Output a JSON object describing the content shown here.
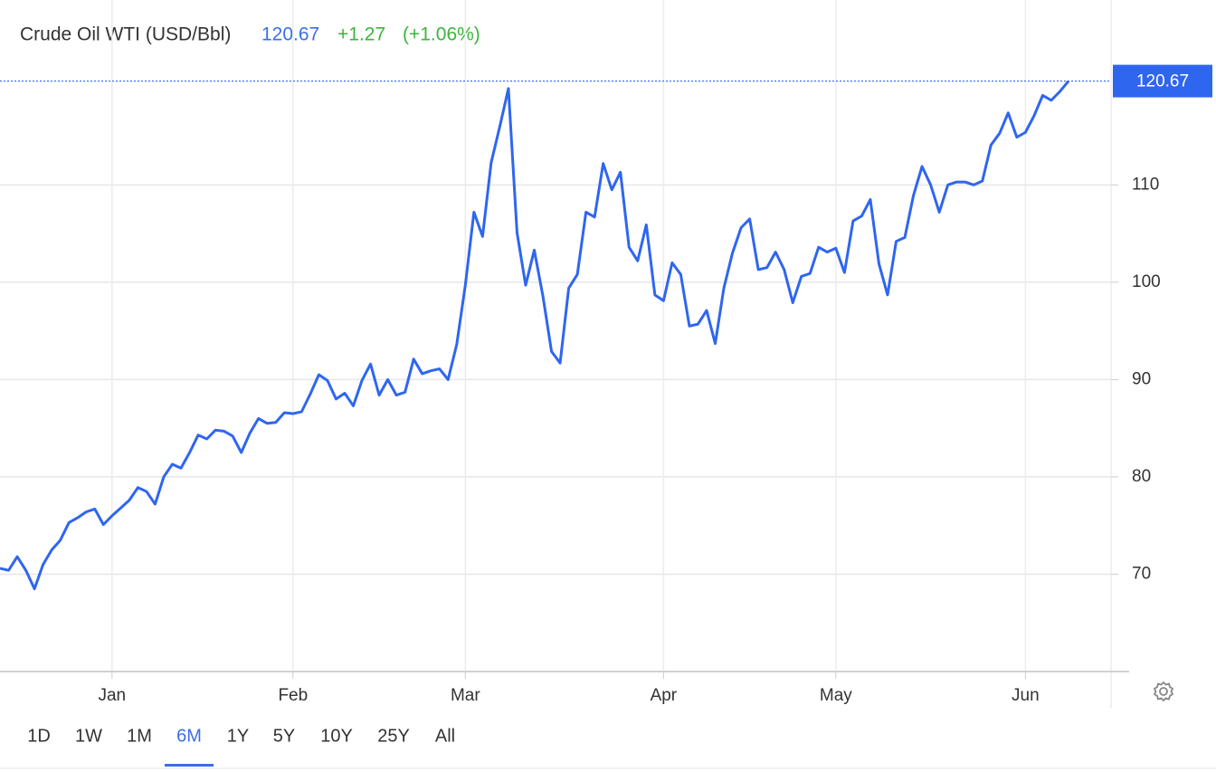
{
  "chart_data": {
    "type": "line",
    "title": "Crude Oil WTI (USD/Bbl)",
    "change": "+1.27",
    "change_percent": "(+1.06%)",
    "color": "#2f66f0",
    "grid": true,
    "ylim": [
      60,
      129
    ],
    "yticks": [
      70,
      80,
      90,
      100,
      110
    ],
    "categories": [
      null,
      null,
      null,
      null,
      null,
      null,
      null,
      null,
      null,
      null,
      null,
      null,
      null,
      "Jan",
      null,
      null,
      null,
      null,
      null,
      null,
      null,
      null,
      null,
      null,
      null,
      null,
      null,
      null,
      null,
      null,
      null,
      null,
      null,
      null,
      "Feb",
      null,
      null,
      null,
      null,
      null,
      null,
      null,
      null,
      null,
      null,
      null,
      null,
      null,
      null,
      null,
      null,
      null,
      null,
      null,
      "Mar",
      null,
      null,
      null,
      null,
      null,
      null,
      null,
      null,
      null,
      null,
      null,
      null,
      null,
      null,
      null,
      null,
      null,
      null,
      null,
      null,
      null,
      null,
      "Apr",
      null,
      null,
      null,
      null,
      null,
      null,
      null,
      null,
      null,
      null,
      null,
      null,
      null,
      null,
      null,
      null,
      null,
      null,
      null,
      "May",
      null,
      null,
      null,
      null,
      null,
      null,
      null,
      null,
      null,
      null,
      null,
      null,
      null,
      null,
      null,
      null,
      null,
      null,
      null,
      null,
      null,
      "Jun",
      null,
      null,
      null,
      null,
      null
    ],
    "values": [
      70.6,
      70.4,
      71.8,
      70.4,
      68.5,
      71.0,
      72.5,
      73.5,
      75.3,
      75.8,
      76.4,
      76.7,
      75.1,
      76.0,
      76.8,
      77.6,
      78.9,
      78.5,
      77.2,
      80.0,
      81.3,
      80.9,
      82.5,
      84.3,
      83.9,
      84.8,
      84.7,
      84.2,
      82.5,
      84.5,
      86.0,
      85.5,
      85.6,
      86.6,
      86.5,
      86.7,
      88.5,
      90.5,
      89.9,
      88.0,
      88.6,
      87.3,
      89.9,
      91.6,
      88.4,
      90.0,
      88.4,
      88.7,
      92.1,
      90.6,
      90.9,
      91.1,
      90.0,
      93.6,
      99.7,
      107.2,
      104.7,
      112.3,
      116.0,
      119.9,
      105.1,
      99.7,
      103.3,
      98.6,
      92.9,
      91.7,
      99.4,
      100.8,
      107.2,
      106.7,
      112.2,
      109.5,
      111.3,
      103.6,
      102.2,
      105.9,
      98.7,
      98.1,
      102.0,
      100.8,
      95.5,
      95.7,
      97.1,
      93.7,
      99.4,
      103.0,
      105.6,
      106.5,
      101.3,
      101.5,
      103.1,
      101.3,
      97.9,
      100.6,
      100.9,
      103.6,
      103.1,
      103.5,
      101.0,
      106.3,
      106.8,
      108.5,
      101.9,
      98.7,
      104.2,
      104.6,
      108.9,
      111.9,
      110.0,
      107.2,
      110.0,
      110.3,
      110.3,
      110.0,
      110.4,
      114.1,
      115.3,
      117.4,
      114.9,
      115.4,
      117.1,
      119.2,
      118.7,
      119.6,
      120.67
    ]
  },
  "ranges": [
    "1D",
    "1W",
    "1M",
    "6M",
    "1Y",
    "5Y",
    "10Y",
    "25Y",
    "All"
  ]
}
